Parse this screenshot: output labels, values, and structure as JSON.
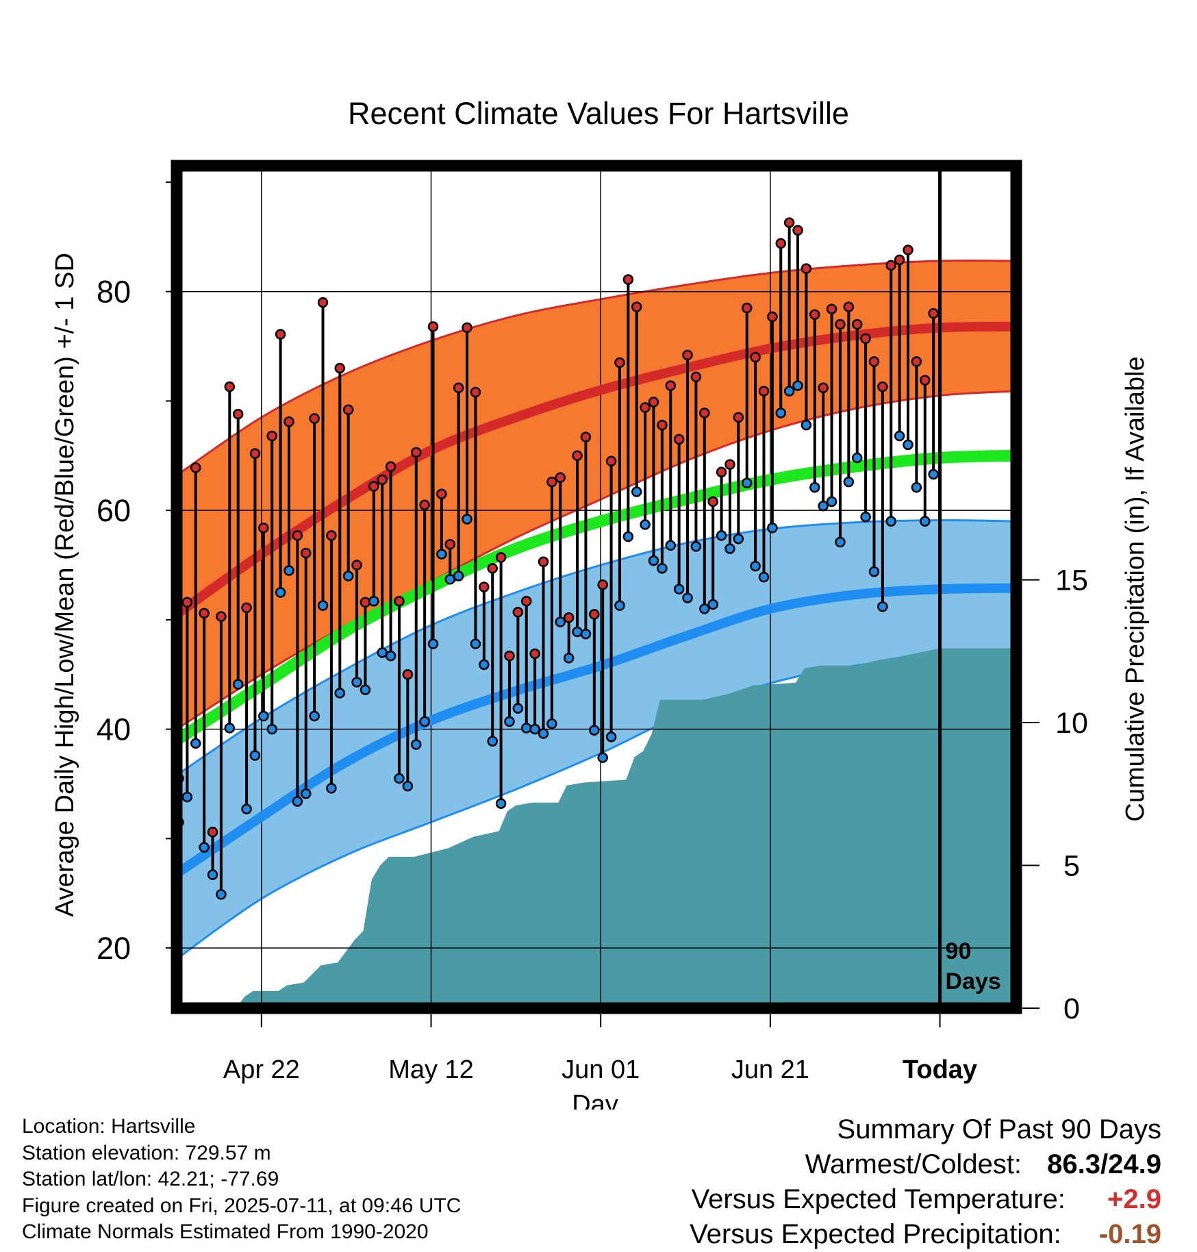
{
  "chart_data": {
    "type": "line",
    "title": "Recent Climate Values For Hartsville",
    "xlabel": "Day",
    "ylabel": "Average Daily High/Low/Mean (Red/Blue/Green) +/- 1 SD",
    "y2label": "Cumulative Precipitation (in), If Available",
    "x_start": "2025-04-12",
    "x_end": "2025-07-20",
    "today": "2025-07-11",
    "today_label": "Today",
    "marker_label": [
      "90",
      "Days"
    ],
    "xticks": [
      {
        "date": "2025-04-22",
        "label": "Apr 22"
      },
      {
        "date": "2025-05-12",
        "label": "May 12"
      },
      {
        "date": "2025-06-01",
        "label": "Jun 01"
      },
      {
        "date": "2025-06-21",
        "label": "Jun 21"
      },
      {
        "date": "2025-07-11",
        "label": "Today"
      }
    ],
    "ylim": [
      14.5,
      91.5
    ],
    "yticks": [
      20,
      40,
      60,
      80
    ],
    "y2lim": [
      0,
      29.5
    ],
    "y2ticks": [
      0,
      5,
      10,
      15
    ],
    "colors": {
      "high_band": "#f57a30",
      "high_line": "#d42a2a",
      "low_band": "#84c1e8",
      "low_line": "#1f8ef0",
      "mean_line": "#1de71d",
      "precip": "#4a9ba6",
      "high_dot": "#d32f2f",
      "low_dot": "#2189e0"
    },
    "normals": {
      "dates": [
        "2025-04-12",
        "2025-04-22",
        "2025-05-02",
        "2025-05-12",
        "2025-05-22",
        "2025-06-01",
        "2025-06-11",
        "2025-06-21",
        "2025-07-01",
        "2025-07-11",
        "2025-07-20"
      ],
      "high_mean": [
        50.5,
        56.0,
        61.0,
        65.5,
        68.5,
        71.0,
        73.0,
        74.8,
        76.0,
        76.7,
        76.8
      ],
      "high_upper": [
        63.2,
        68.5,
        72.5,
        75.5,
        77.8,
        79.3,
        80.6,
        81.7,
        82.4,
        82.8,
        82.8
      ],
      "high_lower": [
        40.0,
        45.0,
        49.5,
        53.5,
        57.5,
        61.0,
        64.5,
        67.3,
        69.3,
        70.5,
        70.9
      ],
      "mean": [
        39.0,
        44.0,
        49.0,
        53.0,
        56.5,
        59.0,
        61.0,
        62.8,
        64.0,
        64.8,
        65.0
      ],
      "low_mean": [
        26.8,
        32.0,
        37.0,
        40.8,
        43.5,
        45.8,
        48.5,
        51.0,
        52.3,
        52.8,
        52.9
      ],
      "low_upper": [
        35.8,
        41.0,
        45.5,
        49.5,
        52.5,
        55.0,
        57.0,
        58.3,
        58.9,
        59.1,
        59.0
      ],
      "low_lower": [
        19.0,
        24.5,
        28.5,
        31.5,
        34.5,
        37.8,
        41.5,
        44.2,
        45.8,
        46.7,
        47.0
      ]
    },
    "daily": {
      "start_date": "2025-04-12",
      "high": [
        35.5,
        51.6,
        63.9,
        50.6,
        30.6,
        50.3,
        71.3,
        68.8,
        51.1,
        65.2,
        58.4,
        66.8,
        76.1,
        68.1,
        57.7,
        56.1,
        68.4,
        79.0,
        57.7,
        73.0,
        69.2,
        55.0,
        51.6,
        62.2,
        62.8,
        64.0,
        51.7,
        45.0,
        65.3,
        60.5,
        76.8,
        61.5,
        56.9,
        71.2,
        76.7,
        70.8,
        53.0,
        54.7,
        55.7,
        46.7,
        50.7,
        51.7,
        46.9,
        55.3,
        62.6,
        63.0,
        50.2,
        65.0,
        66.7,
        50.5,
        53.2,
        64.5,
        73.5,
        81.1,
        78.6,
        69.4,
        69.9,
        67.8,
        71.4,
        66.5,
        74.2,
        72.2,
        68.9,
        60.8,
        63.5,
        64.2,
        68.5,
        78.5,
        74.0,
        70.9,
        77.7,
        84.4,
        86.3,
        85.6,
        82.1,
        77.9,
        71.2,
        78.4,
        77.0,
        78.6,
        77.0,
        75.7,
        73.6,
        71.3,
        82.4,
        82.9,
        83.8,
        73.6,
        71.9,
        78.0
      ],
      "low": [
        31.5,
        33.8,
        38.7,
        29.2,
        26.7,
        24.9,
        40.1,
        44.1,
        32.7,
        37.6,
        41.2,
        40.0,
        52.5,
        54.5,
        33.4,
        34.1,
        41.2,
        51.3,
        34.6,
        43.3,
        54.0,
        44.3,
        43.6,
        51.7,
        47.0,
        46.7,
        35.5,
        34.8,
        38.6,
        40.7,
        47.8,
        56.0,
        53.7,
        54.0,
        59.2,
        47.8,
        45.9,
        38.9,
        33.2,
        40.7,
        41.9,
        40.1,
        40.0,
        39.6,
        40.5,
        49.8,
        46.5,
        48.9,
        48.7,
        39.9,
        37.4,
        39.3,
        51.3,
        57.6,
        61.7,
        58.7,
        55.4,
        54.7,
        56.8,
        52.8,
        52.0,
        56.7,
        51.0,
        51.4,
        57.7,
        56.5,
        57.4,
        62.5,
        54.9,
        53.9,
        58.4,
        68.9,
        70.9,
        71.4,
        67.8,
        62.1,
        60.4,
        60.8,
        57.1,
        62.6,
        64.8,
        59.4,
        54.4,
        51.2,
        59.0,
        66.8,
        66.0,
        62.1,
        59.0,
        63.3
      ]
    },
    "precip": {
      "dates": [
        "2025-04-12",
        "2025-04-19",
        "2025-04-20",
        "2025-04-21",
        "2025-04-24",
        "2025-04-25",
        "2025-04-27",
        "2025-04-29",
        "2025-05-01",
        "2025-05-03",
        "2025-05-04",
        "2025-05-05",
        "2025-05-06",
        "2025-05-07",
        "2025-05-10",
        "2025-05-14",
        "2025-05-17",
        "2025-05-20",
        "2025-05-21",
        "2025-05-22",
        "2025-05-24",
        "2025-05-27",
        "2025-05-28",
        "2025-05-30",
        "2025-06-04",
        "2025-06-05",
        "2025-06-06",
        "2025-06-07",
        "2025-06-08",
        "2025-06-13",
        "2025-06-16",
        "2025-06-18",
        "2025-06-19",
        "2025-06-24",
        "2025-06-25",
        "2025-06-27",
        "2025-07-01",
        "2025-07-04",
        "2025-07-06",
        "2025-07-11",
        "2025-07-20"
      ],
      "values": [
        0.0,
        0.0,
        0.4,
        0.6,
        0.6,
        0.8,
        0.9,
        1.5,
        1.6,
        2.4,
        2.7,
        4.5,
        5.0,
        5.3,
        5.3,
        5.6,
        6.0,
        6.2,
        6.9,
        7.1,
        7.2,
        7.2,
        7.8,
        7.9,
        8.0,
        8.8,
        9.0,
        9.6,
        10.8,
        10.8,
        11.0,
        11.2,
        11.3,
        11.4,
        11.9,
        12.0,
        12.0,
        12.2,
        12.3,
        12.6,
        12.6
      ]
    }
  },
  "footer": {
    "location": "Location: Hartsville",
    "elevation": "Station elevation: 729.57 m",
    "latlon": "Station lat/lon: 42.21; -77.69",
    "created": "Figure created on Fri, 2025-07-11, at 09:46 UTC",
    "normals": "Climate Normals Estimated From 1990-2020"
  },
  "summary": {
    "heading": "Summary Of Past 90 Days",
    "warm_cold_label": "Warmest/Coldest:",
    "warm_cold_value": "86.3/24.9",
    "temp_label": "Versus Expected Temperature:",
    "temp_value": "+2.9",
    "temp_color": "#d32f2f",
    "precip_label": "Versus Expected Precipitation:",
    "precip_value": "-0.19",
    "precip_color": "#a0522d"
  }
}
